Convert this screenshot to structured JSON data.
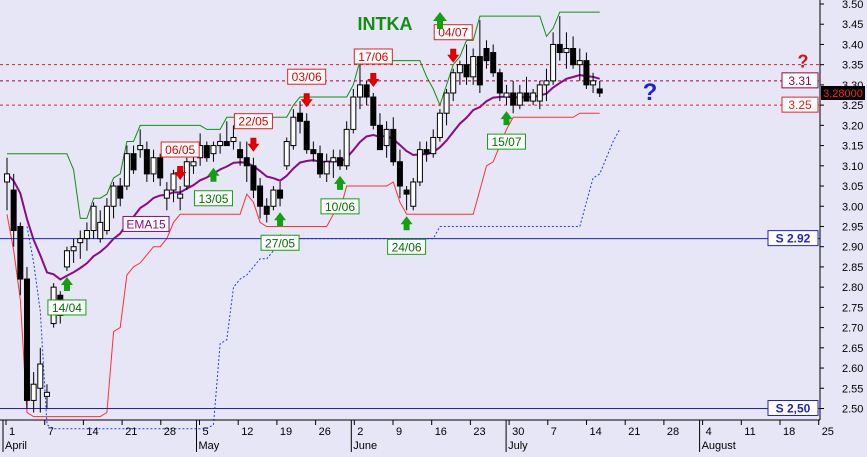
{
  "chart_data": {
    "type": "candlestick",
    "title": "INTKA",
    "xlabel": "",
    "ylabel": "",
    "ylim": [
      2.48,
      3.52
    ],
    "grid": false,
    "y_ticks": [
      "2.50",
      "2.55",
      "2.60",
      "2.65",
      "2.70",
      "2.75",
      "2.80",
      "2.85",
      "2.90",
      "2.95",
      "3.00",
      "3.05",
      "3.10",
      "3.15",
      "3.20",
      "3.25",
      "3.30",
      "3.35",
      "3.40",
      "3.45",
      "3.50"
    ],
    "x_tick_labels": [
      "1",
      "7",
      "14",
      "21",
      "28",
      "5",
      "12",
      "19",
      "26",
      "2",
      "9",
      "16",
      "23",
      "30",
      "7",
      "14",
      "21",
      "28",
      "4",
      "11",
      "18",
      "25"
    ],
    "month_labels": [
      "April",
      "May",
      "June",
      "July",
      "August"
    ],
    "last_price_label": "3.28000",
    "ema_label": "EMA15",
    "horizontal_levels": [
      {
        "label": "S 2.92",
        "value": 2.92,
        "color": "#2020d0"
      },
      {
        "label": "S 2,50",
        "value": 2.5,
        "color": "#2020d0"
      },
      {
        "label": "3.31",
        "value": 3.31,
        "color": "#a00040"
      },
      {
        "label": "3.25",
        "value": 3.25,
        "color": "#e02020"
      }
    ],
    "signals": [
      {
        "label": "14/04",
        "kind": "buy"
      },
      {
        "label": "06/05",
        "kind": "sell"
      },
      {
        "label": "13/05",
        "kind": "buy"
      },
      {
        "label": "22/05",
        "kind": "sell"
      },
      {
        "label": "27/05",
        "kind": "buy"
      },
      {
        "label": "03/06",
        "kind": "sell"
      },
      {
        "label": "10/06",
        "kind": "buy"
      },
      {
        "label": "17/06",
        "kind": "sell"
      },
      {
        "label": "24/06",
        "kind": "buy"
      },
      {
        "label": "04/07",
        "kind": "sell"
      },
      {
        "label": "15/07",
        "kind": "buy"
      }
    ],
    "candles": [
      {
        "o": 3.06,
        "h": 3.12,
        "l": 2.99,
        "c": 3.08
      },
      {
        "o": 3.04,
        "h": 3.08,
        "l": 2.9,
        "c": 2.94
      },
      {
        "o": 2.95,
        "h": 2.96,
        "l": 2.78,
        "c": 2.82
      },
      {
        "o": 2.82,
        "h": 2.85,
        "l": 2.5,
        "c": 2.52
      },
      {
        "o": 2.52,
        "h": 2.59,
        "l": 2.49,
        "c": 2.56
      },
      {
        "o": 2.55,
        "h": 2.65,
        "l": 2.49,
        "c": 2.61
      },
      {
        "o": 2.53,
        "h": 2.56,
        "l": 2.5,
        "c": 2.54
      },
      {
        "o": 2.71,
        "h": 2.81,
        "l": 2.7,
        "c": 2.8
      },
      {
        "o": 2.78,
        "h": 2.79,
        "l": 2.71,
        "c": 2.73
      },
      {
        "o": 2.85,
        "h": 2.9,
        "l": 2.84,
        "c": 2.89
      },
      {
        "o": 2.89,
        "h": 2.92,
        "l": 2.86,
        "c": 2.9
      },
      {
        "o": 2.91,
        "h": 2.94,
        "l": 2.87,
        "c": 2.92
      },
      {
        "o": 2.92,
        "h": 2.96,
        "l": 2.89,
        "c": 2.94
      },
      {
        "o": 2.94,
        "h": 3.01,
        "l": 2.92,
        "c": 3.0
      },
      {
        "o": 2.92,
        "h": 2.99,
        "l": 2.91,
        "c": 2.96
      },
      {
        "o": 2.94,
        "h": 3.02,
        "l": 2.93,
        "c": 3.0
      },
      {
        "o": 3.0,
        "h": 3.06,
        "l": 2.97,
        "c": 3.05
      },
      {
        "o": 3.05,
        "h": 3.07,
        "l": 3.0,
        "c": 3.02
      },
      {
        "o": 3.05,
        "h": 3.15,
        "l": 3.04,
        "c": 3.13
      },
      {
        "o": 3.13,
        "h": 3.15,
        "l": 3.08,
        "c": 3.09
      },
      {
        "o": 3.14,
        "h": 3.19,
        "l": 3.12,
        "c": 3.15
      },
      {
        "o": 3.14,
        "h": 3.16,
        "l": 3.06,
        "c": 3.08
      },
      {
        "o": 3.08,
        "h": 3.14,
        "l": 3.06,
        "c": 3.12
      },
      {
        "o": 3.12,
        "h": 3.13,
        "l": 3.05,
        "c": 3.07
      },
      {
        "o": 3.02,
        "h": 3.06,
        "l": 2.99,
        "c": 3.04
      },
      {
        "o": 3.04,
        "h": 3.09,
        "l": 3.01,
        "c": 3.08
      },
      {
        "o": 3.02,
        "h": 3.05,
        "l": 2.99,
        "c": 3.03
      },
      {
        "o": 3.05,
        "h": 3.12,
        "l": 3.04,
        "c": 3.11
      },
      {
        "o": 3.1,
        "h": 3.15,
        "l": 3.08,
        "c": 3.11
      },
      {
        "o": 3.12,
        "h": 3.18,
        "l": 3.1,
        "c": 3.15
      },
      {
        "o": 3.15,
        "h": 3.16,
        "l": 3.11,
        "c": 3.12
      },
      {
        "o": 3.13,
        "h": 3.16,
        "l": 3.11,
        "c": 3.15
      },
      {
        "o": 3.15,
        "h": 3.18,
        "l": 3.13,
        "c": 3.16
      },
      {
        "o": 3.16,
        "h": 3.21,
        "l": 3.15,
        "c": 3.15
      },
      {
        "o": 3.16,
        "h": 3.2,
        "l": 3.14,
        "c": 3.17
      },
      {
        "o": 3.14,
        "h": 3.16,
        "l": 3.1,
        "c": 3.12
      },
      {
        "o": 3.12,
        "h": 3.16,
        "l": 3.06,
        "c": 3.1
      },
      {
        "o": 3.1,
        "h": 3.12,
        "l": 3.02,
        "c": 3.04
      },
      {
        "o": 3.05,
        "h": 3.07,
        "l": 2.97,
        "c": 3.0
      },
      {
        "o": 3.0,
        "h": 3.02,
        "l": 2.96,
        "c": 2.98
      },
      {
        "o": 3.0,
        "h": 3.05,
        "l": 2.99,
        "c": 3.04
      },
      {
        "o": 3.04,
        "h": 3.06,
        "l": 3.0,
        "c": 3.02
      },
      {
        "o": 3.1,
        "h": 3.17,
        "l": 3.09,
        "c": 3.16
      },
      {
        "o": 3.15,
        "h": 3.24,
        "l": 3.14,
        "c": 3.22
      },
      {
        "o": 3.23,
        "h": 3.26,
        "l": 3.18,
        "c": 3.21
      },
      {
        "o": 3.21,
        "h": 3.23,
        "l": 3.13,
        "c": 3.14
      },
      {
        "o": 3.14,
        "h": 3.16,
        "l": 3.11,
        "c": 3.13
      },
      {
        "o": 3.13,
        "h": 3.15,
        "l": 3.07,
        "c": 3.08
      },
      {
        "o": 3.08,
        "h": 3.13,
        "l": 3.06,
        "c": 3.11
      },
      {
        "o": 3.11,
        "h": 3.14,
        "l": 3.07,
        "c": 3.12
      },
      {
        "o": 3.12,
        "h": 3.14,
        "l": 3.09,
        "c": 3.1
      },
      {
        "o": 3.1,
        "h": 3.21,
        "l": 3.09,
        "c": 3.19
      },
      {
        "o": 3.19,
        "h": 3.29,
        "l": 3.18,
        "c": 3.27
      },
      {
        "o": 3.27,
        "h": 3.35,
        "l": 3.24,
        "c": 3.3
      },
      {
        "o": 3.3,
        "h": 3.31,
        "l": 3.25,
        "c": 3.27
      },
      {
        "o": 3.27,
        "h": 3.28,
        "l": 3.19,
        "c": 3.2
      },
      {
        "o": 3.2,
        "h": 3.23,
        "l": 3.14,
        "c": 3.14
      },
      {
        "o": 3.15,
        "h": 3.21,
        "l": 3.12,
        "c": 3.19
      },
      {
        "o": 3.19,
        "h": 3.22,
        "l": 3.1,
        "c": 3.11
      },
      {
        "o": 3.11,
        "h": 3.14,
        "l": 3.02,
        "c": 3.05
      },
      {
        "o": 3.04,
        "h": 3.05,
        "l": 2.99,
        "c": 3.03
      },
      {
        "o": 3.0,
        "h": 3.07,
        "l": 2.99,
        "c": 3.06
      },
      {
        "o": 3.06,
        "h": 3.16,
        "l": 3.05,
        "c": 3.14
      },
      {
        "o": 3.14,
        "h": 3.16,
        "l": 3.11,
        "c": 3.13
      },
      {
        "o": 3.13,
        "h": 3.19,
        "l": 3.12,
        "c": 3.17
      },
      {
        "o": 3.17,
        "h": 3.24,
        "l": 3.16,
        "c": 3.23
      },
      {
        "o": 3.23,
        "h": 3.29,
        "l": 3.2,
        "c": 3.28
      },
      {
        "o": 3.28,
        "h": 3.34,
        "l": 3.26,
        "c": 3.33
      },
      {
        "o": 3.33,
        "h": 3.36,
        "l": 3.3,
        "c": 3.35
      },
      {
        "o": 3.35,
        "h": 3.4,
        "l": 3.3,
        "c": 3.32
      },
      {
        "o": 3.32,
        "h": 3.39,
        "l": 3.3,
        "c": 3.37
      },
      {
        "o": 3.37,
        "h": 3.46,
        "l": 3.28,
        "c": 3.3
      },
      {
        "o": 3.39,
        "h": 3.41,
        "l": 3.34,
        "c": 3.36
      },
      {
        "o": 3.38,
        "h": 3.4,
        "l": 3.32,
        "c": 3.33
      },
      {
        "o": 3.33,
        "h": 3.34,
        "l": 3.26,
        "c": 3.28
      },
      {
        "o": 3.27,
        "h": 3.3,
        "l": 3.25,
        "c": 3.28
      },
      {
        "o": 3.28,
        "h": 3.31,
        "l": 3.23,
        "c": 3.25
      },
      {
        "o": 3.25,
        "h": 3.3,
        "l": 3.24,
        "c": 3.28
      },
      {
        "o": 3.28,
        "h": 3.32,
        "l": 3.26,
        "c": 3.26
      },
      {
        "o": 3.26,
        "h": 3.29,
        "l": 3.25,
        "c": 3.28
      },
      {
        "o": 3.26,
        "h": 3.31,
        "l": 3.24,
        "c": 3.3
      },
      {
        "o": 3.3,
        "h": 3.34,
        "l": 3.26,
        "c": 3.31
      },
      {
        "o": 3.31,
        "h": 3.43,
        "l": 3.3,
        "c": 3.4
      },
      {
        "o": 3.4,
        "h": 3.47,
        "l": 3.36,
        "c": 3.38
      },
      {
        "o": 3.38,
        "h": 3.43,
        "l": 3.34,
        "c": 3.39
      },
      {
        "o": 3.39,
        "h": 3.42,
        "l": 3.34,
        "c": 3.35
      },
      {
        "o": 3.35,
        "h": 3.39,
        "l": 3.31,
        "c": 3.36
      },
      {
        "o": 3.36,
        "h": 3.38,
        "l": 3.29,
        "c": 3.3
      },
      {
        "o": 3.3,
        "h": 3.33,
        "l": 3.28,
        "c": 3.31
      },
      {
        "o": 3.29,
        "h": 3.31,
        "l": 3.27,
        "c": 3.28
      }
    ]
  }
}
